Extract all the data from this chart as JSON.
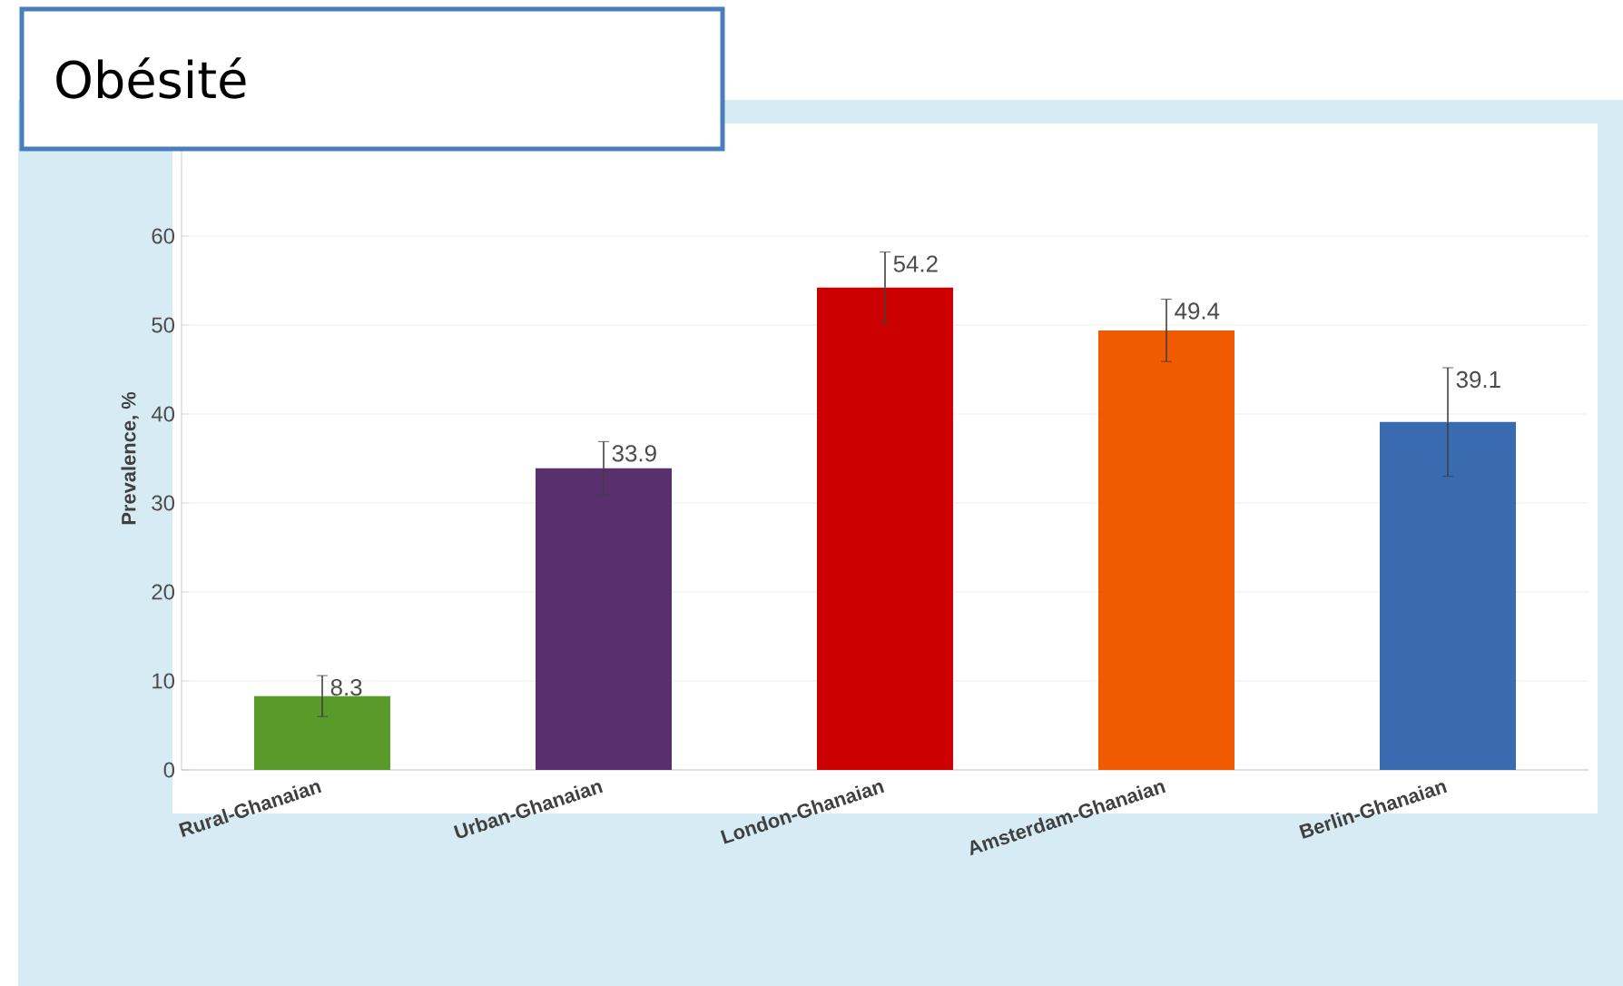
{
  "chart_data": {
    "type": "bar",
    "title": "Obésité",
    "ylabel": "Prevalence, %",
    "categories": [
      "Rural-Ghanaian",
      "Urban-Ghanaian",
      "London-Ghanaian",
      "Amsterdam-Ghanaian",
      "Berlin-Ghanaian"
    ],
    "values": [
      8.3,
      33.9,
      54.2,
      49.4,
      39.1
    ],
    "errors": [
      2.3,
      3,
      4,
      3.5,
      6.1
    ],
    "value_labels": [
      "8.3",
      "33.9",
      "54.2",
      "49.4",
      "39.1"
    ],
    "colors": [
      "#5a9a2a",
      "#5a2f6e",
      "#cc0000",
      "#f05a00",
      "#3a6ab0"
    ],
    "ylim": [
      0,
      70
    ],
    "yticks": [
      0,
      10,
      20,
      30,
      40,
      50,
      60
    ],
    "grid": "y"
  }
}
